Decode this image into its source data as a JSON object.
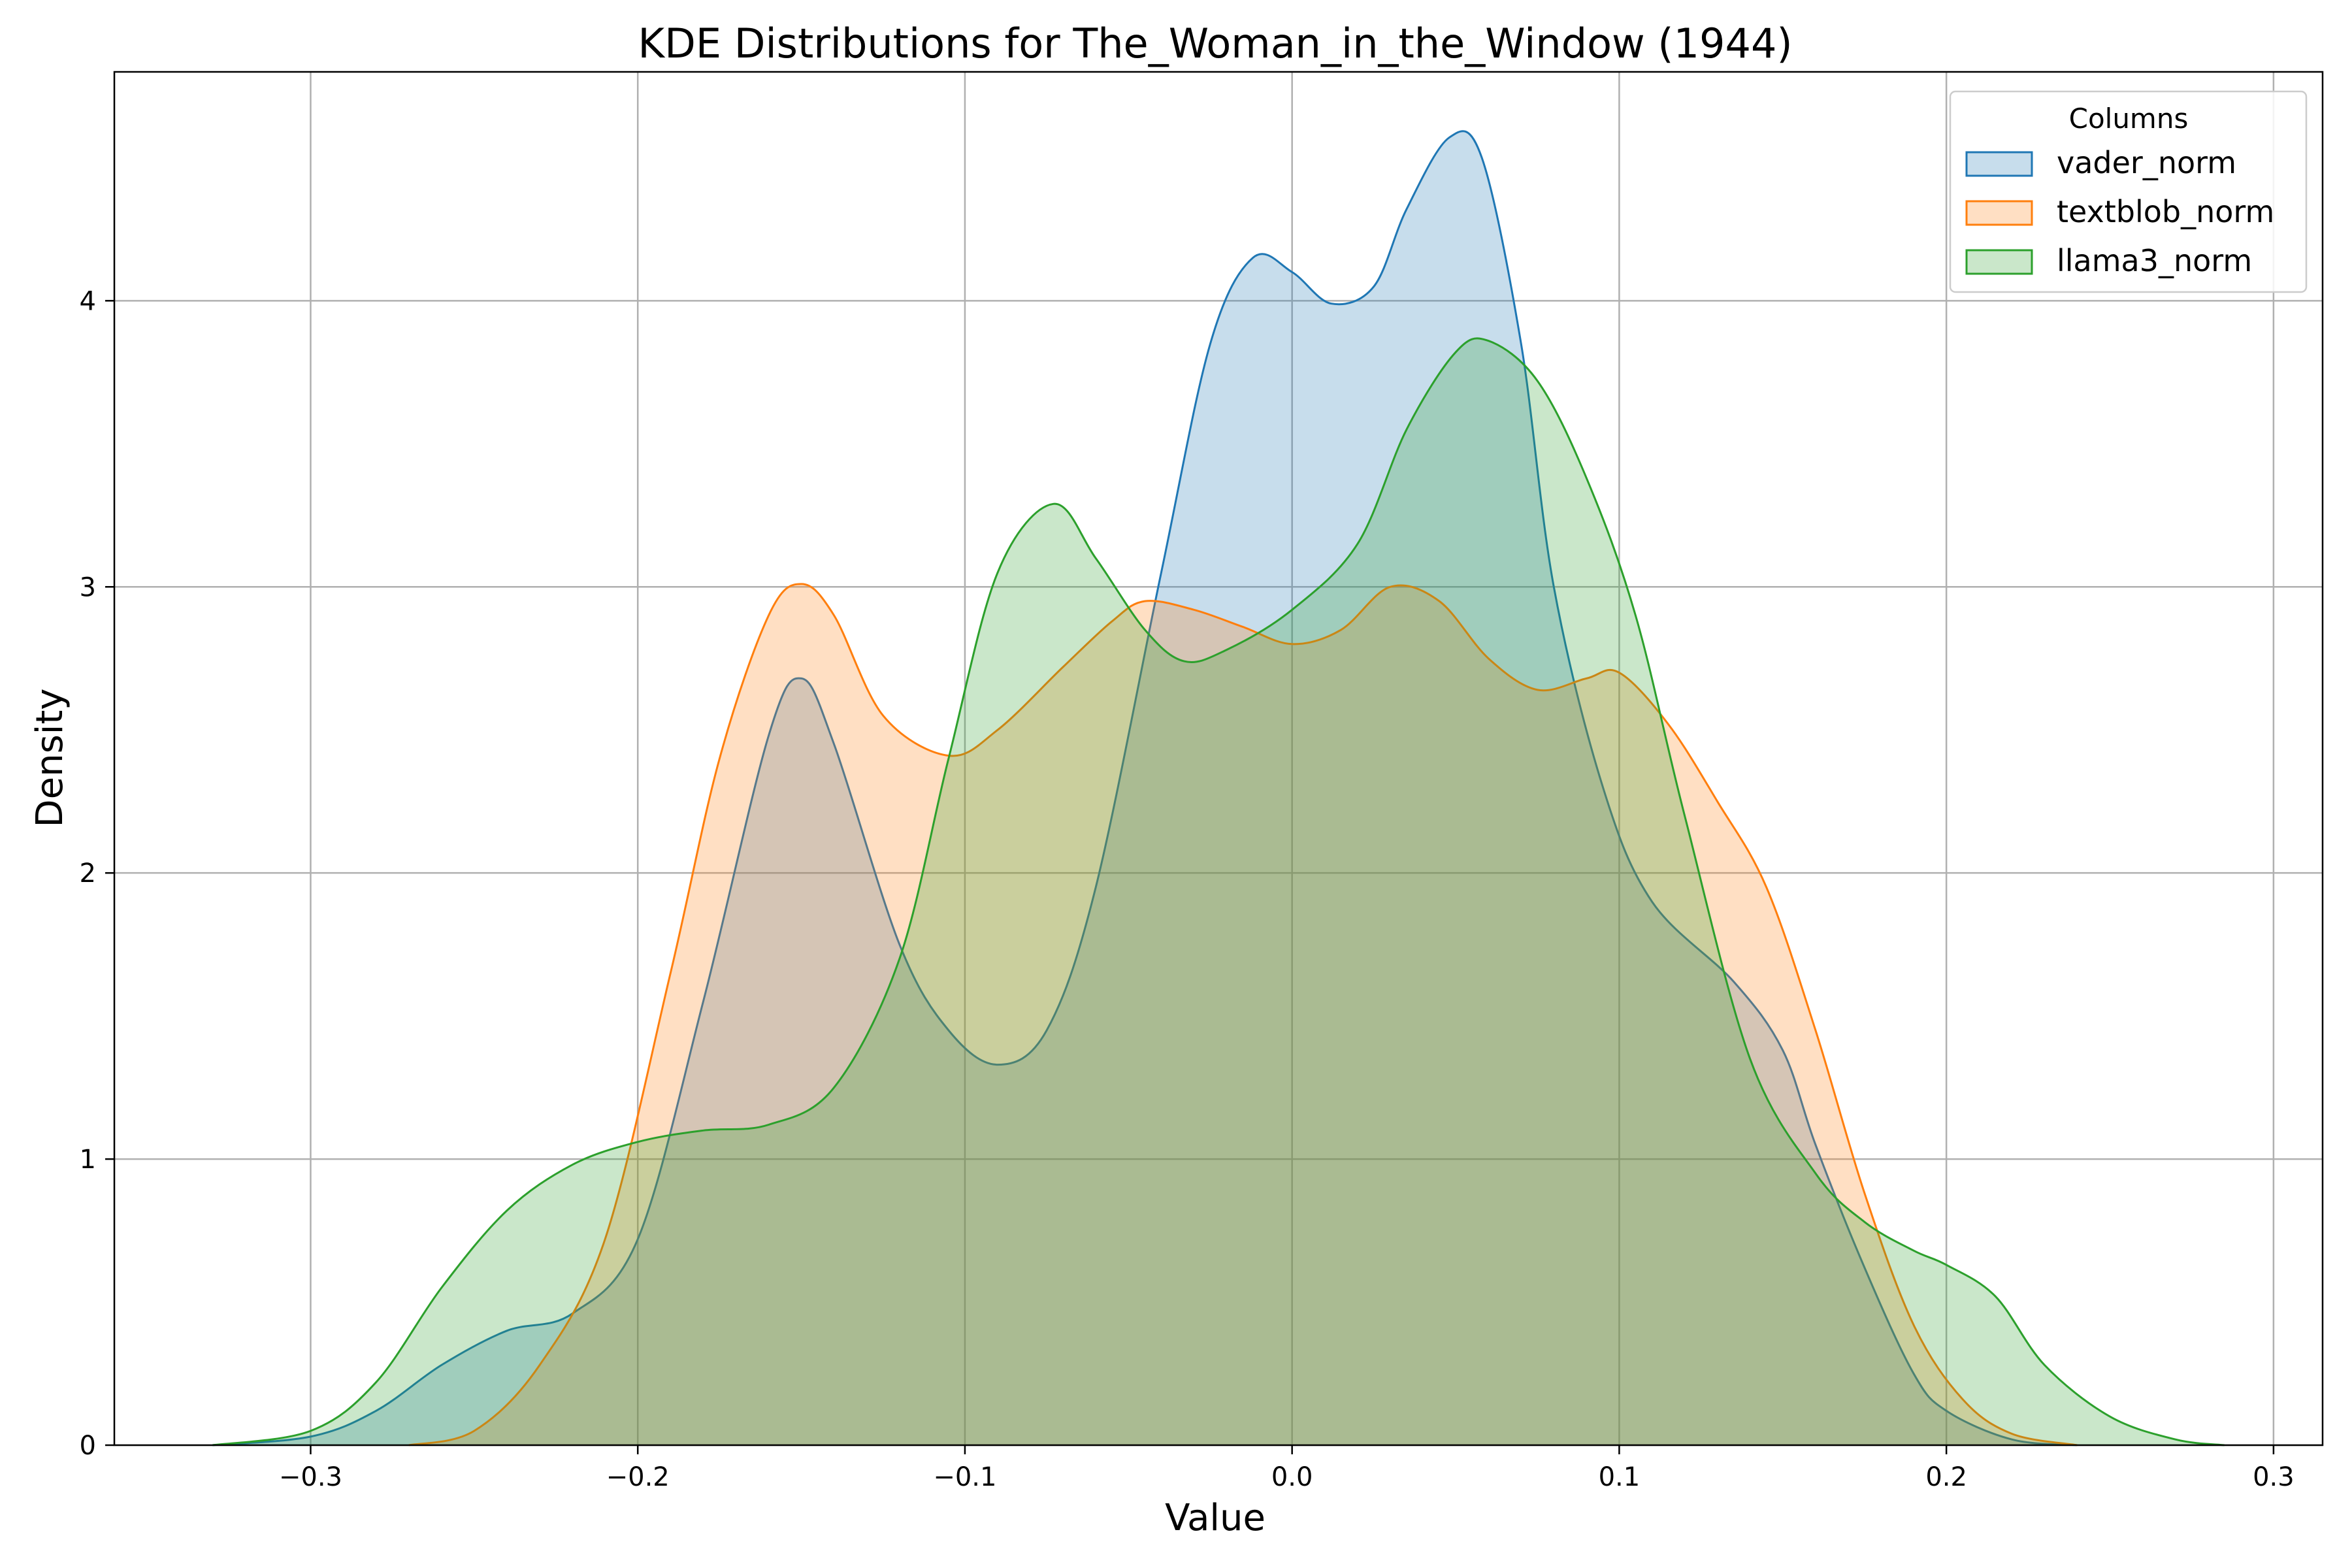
{
  "chart_data": {
    "type": "area",
    "title": "KDE Distributions for The_Woman_in_the_Window (1944)",
    "xlabel": "Value",
    "ylabel": "Density",
    "xlim": [
      -0.36,
      0.315
    ],
    "ylim": [
      0,
      4.8
    ],
    "xticks": [
      -0.3,
      -0.2,
      -0.1,
      0.0,
      0.1,
      0.2,
      0.3
    ],
    "xtick_labels": [
      "−0.3",
      "−0.2",
      "−0.1",
      "0.0",
      "0.1",
      "0.2",
      "0.3"
    ],
    "yticks": [
      0,
      1,
      2,
      3,
      4
    ],
    "ytick_labels": [
      "0",
      "1",
      "2",
      "3",
      "4"
    ],
    "grid": true,
    "legend": {
      "title": "Columns",
      "position": "top-right"
    },
    "series": [
      {
        "name": "vader_norm",
        "color": "#1f77b4",
        "points": [
          [
            -0.33,
            0.0
          ],
          [
            -0.3,
            0.03
          ],
          [
            -0.28,
            0.12
          ],
          [
            -0.26,
            0.28
          ],
          [
            -0.24,
            0.4
          ],
          [
            -0.22,
            0.46
          ],
          [
            -0.2,
            0.72
          ],
          [
            -0.18,
            1.55
          ],
          [
            -0.16,
            2.48
          ],
          [
            -0.15,
            2.68
          ],
          [
            -0.14,
            2.45
          ],
          [
            -0.12,
            1.75
          ],
          [
            -0.105,
            1.45
          ],
          [
            -0.09,
            1.33
          ],
          [
            -0.075,
            1.45
          ],
          [
            -0.06,
            1.95
          ],
          [
            -0.04,
            3.05
          ],
          [
            -0.025,
            3.85
          ],
          [
            -0.012,
            4.15
          ],
          [
            0.0,
            4.1
          ],
          [
            0.012,
            3.99
          ],
          [
            0.025,
            4.05
          ],
          [
            0.035,
            4.32
          ],
          [
            0.048,
            4.57
          ],
          [
            0.058,
            4.5
          ],
          [
            0.07,
            3.85
          ],
          [
            0.08,
            3.0
          ],
          [
            0.095,
            2.3
          ],
          [
            0.11,
            1.9
          ],
          [
            0.135,
            1.62
          ],
          [
            0.15,
            1.38
          ],
          [
            0.16,
            1.05
          ],
          [
            0.175,
            0.62
          ],
          [
            0.19,
            0.25
          ],
          [
            0.2,
            0.12
          ],
          [
            0.22,
            0.02
          ],
          [
            0.24,
            0.0
          ]
        ]
      },
      {
        "name": "textblob_norm",
        "color": "#ff7f0e",
        "points": [
          [
            -0.27,
            0.0
          ],
          [
            -0.25,
            0.05
          ],
          [
            -0.23,
            0.28
          ],
          [
            -0.21,
            0.72
          ],
          [
            -0.19,
            1.65
          ],
          [
            -0.175,
            2.4
          ],
          [
            -0.16,
            2.9
          ],
          [
            -0.15,
            3.01
          ],
          [
            -0.14,
            2.9
          ],
          [
            -0.125,
            2.55
          ],
          [
            -0.105,
            2.41
          ],
          [
            -0.09,
            2.5
          ],
          [
            -0.07,
            2.72
          ],
          [
            -0.055,
            2.88
          ],
          [
            -0.045,
            2.95
          ],
          [
            -0.03,
            2.92
          ],
          [
            -0.015,
            2.86
          ],
          [
            0.0,
            2.8
          ],
          [
            0.015,
            2.85
          ],
          [
            0.03,
            3.0
          ],
          [
            0.045,
            2.95
          ],
          [
            0.06,
            2.75
          ],
          [
            0.075,
            2.64
          ],
          [
            0.09,
            2.68
          ],
          [
            0.1,
            2.7
          ],
          [
            0.115,
            2.52
          ],
          [
            0.13,
            2.25
          ],
          [
            0.145,
            1.95
          ],
          [
            0.16,
            1.45
          ],
          [
            0.175,
            0.88
          ],
          [
            0.19,
            0.42
          ],
          [
            0.205,
            0.16
          ],
          [
            0.22,
            0.04
          ],
          [
            0.24,
            0.0
          ]
        ]
      },
      {
        "name": "llama3_norm",
        "color": "#2ca02c",
        "points": [
          [
            -0.33,
            0.0
          ],
          [
            -0.3,
            0.05
          ],
          [
            -0.28,
            0.22
          ],
          [
            -0.26,
            0.55
          ],
          [
            -0.24,
            0.82
          ],
          [
            -0.22,
            0.98
          ],
          [
            -0.2,
            1.06
          ],
          [
            -0.18,
            1.1
          ],
          [
            -0.16,
            1.12
          ],
          [
            -0.14,
            1.25
          ],
          [
            -0.12,
            1.7
          ],
          [
            -0.105,
            2.4
          ],
          [
            -0.09,
            3.05
          ],
          [
            -0.073,
            3.29
          ],
          [
            -0.06,
            3.1
          ],
          [
            -0.045,
            2.85
          ],
          [
            -0.033,
            2.74
          ],
          [
            -0.02,
            2.78
          ],
          [
            0.0,
            2.92
          ],
          [
            0.02,
            3.15
          ],
          [
            0.035,
            3.55
          ],
          [
            0.05,
            3.82
          ],
          [
            0.06,
            3.86
          ],
          [
            0.075,
            3.72
          ],
          [
            0.09,
            3.38
          ],
          [
            0.105,
            2.9
          ],
          [
            0.12,
            2.2
          ],
          [
            0.14,
            1.35
          ],
          [
            0.16,
            0.95
          ],
          [
            0.175,
            0.78
          ],
          [
            0.19,
            0.68
          ],
          [
            0.2,
            0.63
          ],
          [
            0.215,
            0.52
          ],
          [
            0.23,
            0.28
          ],
          [
            0.25,
            0.1
          ],
          [
            0.27,
            0.02
          ],
          [
            0.285,
            0.0
          ]
        ]
      }
    ]
  }
}
